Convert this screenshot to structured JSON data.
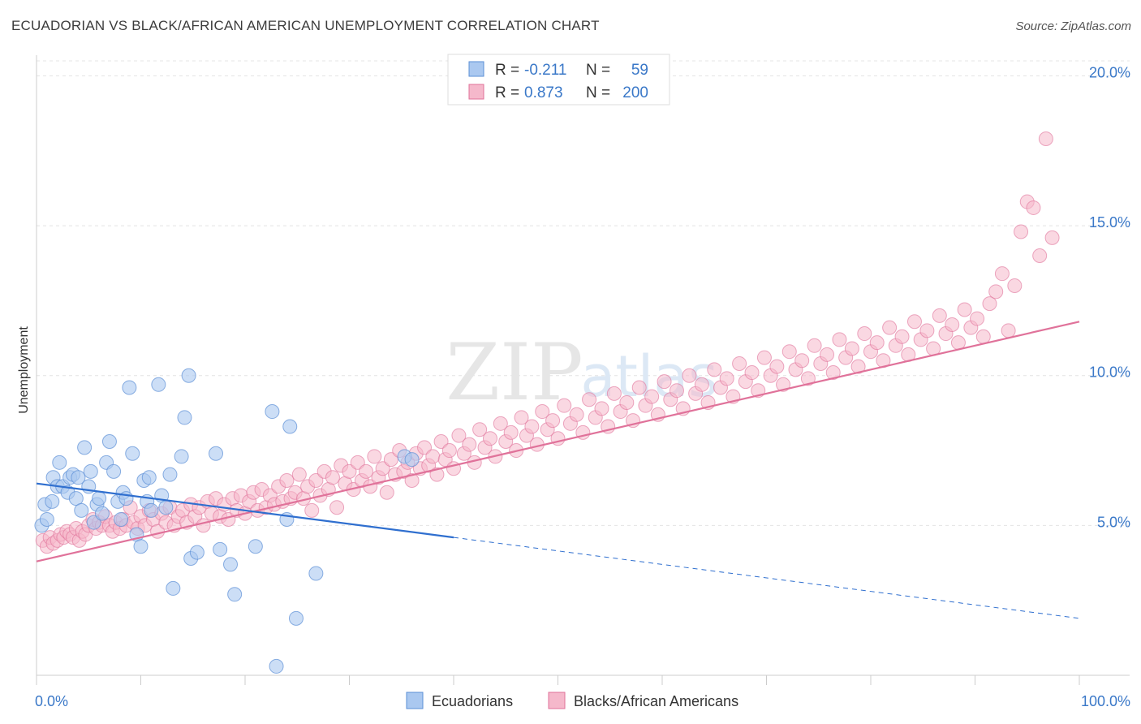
{
  "title": "ECUADORIAN VS BLACK/AFRICAN AMERICAN UNEMPLOYMENT CORRELATION CHART",
  "source": "Source: ZipAtlas.com",
  "watermark": {
    "zip": "ZIP",
    "atlas": "atlas"
  },
  "colors": {
    "blue": "#5b8fd6",
    "blue_fill": "#aac8f0",
    "pink": "#e0729a",
    "pink_fill": "#f5b8cb",
    "axis_text": "#3a78c8"
  },
  "legend": {
    "rows": [
      {
        "r_label": "R =",
        "r_value": "-0.211",
        "n_label": "N =",
        "n_value": "59"
      },
      {
        "r_label": "R =",
        "r_value": "0.873",
        "n_label": "N =",
        "n_value": "200"
      }
    ]
  },
  "chart_data": {
    "type": "scatter",
    "title": "ECUADORIAN VS BLACK/AFRICAN AMERICAN UNEMPLOYMENT CORRELATION CHART",
    "xlabel": "",
    "ylabel": "Unemployment",
    "xlim": [
      0,
      100
    ],
    "ylim": [
      0,
      20.5
    ],
    "x_tick_labels": [
      "0.0%",
      "100.0%"
    ],
    "y_ticks": [
      5,
      10,
      15,
      20
    ],
    "y_tick_labels": [
      "5.0%",
      "10.0%",
      "15.0%",
      "20.0%"
    ],
    "grid": true,
    "legend_position": "bottom-center",
    "series": [
      {
        "name": "Ecuadorians",
        "r": -0.211,
        "n": 59,
        "trend": {
          "x0": 0,
          "y0": 6.4,
          "x1": 40,
          "y1": 4.6,
          "dash_to_x": 100,
          "dash_to_y": 1.9
        },
        "points": [
          [
            0.5,
            5.0
          ],
          [
            0.8,
            5.7
          ],
          [
            1.0,
            5.2
          ],
          [
            1.5,
            5.8
          ],
          [
            1.6,
            6.6
          ],
          [
            2.0,
            6.3
          ],
          [
            2.2,
            7.1
          ],
          [
            2.5,
            6.3
          ],
          [
            3.0,
            6.1
          ],
          [
            3.2,
            6.6
          ],
          [
            3.5,
            6.7
          ],
          [
            3.8,
            5.9
          ],
          [
            4.0,
            6.6
          ],
          [
            4.3,
            5.5
          ],
          [
            4.6,
            7.6
          ],
          [
            5.0,
            6.3
          ],
          [
            5.2,
            6.8
          ],
          [
            5.5,
            5.1
          ],
          [
            5.8,
            5.7
          ],
          [
            6.0,
            5.9
          ],
          [
            6.3,
            5.4
          ],
          [
            6.7,
            7.1
          ],
          [
            7.0,
            7.8
          ],
          [
            7.4,
            6.8
          ],
          [
            7.8,
            5.8
          ],
          [
            8.1,
            5.2
          ],
          [
            8.3,
            6.1
          ],
          [
            8.6,
            5.9
          ],
          [
            8.9,
            9.6
          ],
          [
            9.2,
            7.4
          ],
          [
            9.6,
            4.7
          ],
          [
            10.0,
            4.3
          ],
          [
            10.3,
            6.5
          ],
          [
            10.6,
            5.8
          ],
          [
            10.8,
            6.6
          ],
          [
            11.0,
            5.5
          ],
          [
            11.7,
            9.7
          ],
          [
            12.0,
            6.0
          ],
          [
            12.4,
            5.6
          ],
          [
            12.8,
            6.7
          ],
          [
            13.1,
            2.9
          ],
          [
            13.9,
            7.3
          ],
          [
            14.2,
            8.6
          ],
          [
            14.6,
            10.0
          ],
          [
            14.8,
            3.9
          ],
          [
            15.4,
            4.1
          ],
          [
            17.2,
            7.4
          ],
          [
            17.6,
            4.2
          ],
          [
            18.6,
            3.7
          ],
          [
            19.0,
            2.7
          ],
          [
            21.0,
            4.3
          ],
          [
            22.6,
            8.8
          ],
          [
            23.0,
            0.3
          ],
          [
            24.0,
            5.2
          ],
          [
            24.3,
            8.3
          ],
          [
            24.9,
            1.9
          ],
          [
            26.8,
            3.4
          ],
          [
            35.3,
            7.3
          ],
          [
            36.0,
            7.2
          ]
        ]
      },
      {
        "name": "Blacks/African Americans",
        "r": 0.873,
        "n": 200,
        "trend": {
          "x0": 0,
          "y0": 3.8,
          "x1": 100,
          "y1": 11.8
        },
        "points": [
          [
            0.6,
            4.5
          ],
          [
            1.0,
            4.3
          ],
          [
            1.3,
            4.6
          ],
          [
            1.6,
            4.4
          ],
          [
            2.0,
            4.5
          ],
          [
            2.3,
            4.7
          ],
          [
            2.6,
            4.6
          ],
          [
            2.9,
            4.8
          ],
          [
            3.2,
            4.7
          ],
          [
            3.5,
            4.6
          ],
          [
            3.8,
            4.9
          ],
          [
            4.1,
            4.5
          ],
          [
            4.4,
            4.8
          ],
          [
            4.7,
            4.7
          ],
          [
            5.0,
            5.0
          ],
          [
            5.4,
            5.2
          ],
          [
            5.7,
            4.9
          ],
          [
            6.0,
            5.1
          ],
          [
            6.3,
            5.0
          ],
          [
            6.6,
            5.3
          ],
          [
            7.0,
            5.0
          ],
          [
            7.3,
            4.8
          ],
          [
            7.6,
            5.1
          ],
          [
            8.0,
            4.9
          ],
          [
            8.3,
            5.2
          ],
          [
            8.6,
            5.0
          ],
          [
            9.0,
            5.6
          ],
          [
            9.3,
            5.1
          ],
          [
            9.7,
            4.9
          ],
          [
            10.0,
            5.3
          ],
          [
            10.4,
            5.0
          ],
          [
            10.8,
            5.5
          ],
          [
            11.2,
            5.2
          ],
          [
            11.6,
            4.8
          ],
          [
            12.0,
            5.4
          ],
          [
            12.4,
            5.1
          ],
          [
            12.8,
            5.6
          ],
          [
            13.2,
            5.0
          ],
          [
            13.6,
            5.3
          ],
          [
            14.0,
            5.5
          ],
          [
            14.4,
            5.1
          ],
          [
            14.8,
            5.7
          ],
          [
            15.2,
            5.3
          ],
          [
            15.6,
            5.6
          ],
          [
            16.0,
            5.0
          ],
          [
            16.4,
            5.8
          ],
          [
            16.8,
            5.4
          ],
          [
            17.2,
            5.9
          ],
          [
            17.6,
            5.3
          ],
          [
            18.0,
            5.7
          ],
          [
            18.4,
            5.2
          ],
          [
            18.8,
            5.9
          ],
          [
            19.2,
            5.5
          ],
          [
            19.6,
            6.0
          ],
          [
            20.0,
            5.4
          ],
          [
            20.4,
            5.8
          ],
          [
            20.8,
            6.1
          ],
          [
            21.2,
            5.5
          ],
          [
            21.6,
            6.2
          ],
          [
            22.0,
            5.6
          ],
          [
            22.4,
            6.0
          ],
          [
            22.8,
            5.7
          ],
          [
            23.2,
            6.3
          ],
          [
            23.6,
            5.8
          ],
          [
            24.0,
            6.5
          ],
          [
            24.4,
            5.9
          ],
          [
            24.8,
            6.1
          ],
          [
            25.2,
            6.7
          ],
          [
            25.6,
            5.9
          ],
          [
            26.0,
            6.3
          ],
          [
            26.4,
            5.5
          ],
          [
            26.8,
            6.5
          ],
          [
            27.2,
            6.0
          ],
          [
            27.6,
            6.8
          ],
          [
            28.0,
            6.2
          ],
          [
            28.4,
            6.6
          ],
          [
            28.8,
            5.6
          ],
          [
            29.2,
            7.0
          ],
          [
            29.6,
            6.4
          ],
          [
            30.0,
            6.8
          ],
          [
            30.4,
            6.2
          ],
          [
            30.8,
            7.1
          ],
          [
            31.2,
            6.5
          ],
          [
            31.6,
            6.8
          ],
          [
            32.0,
            6.3
          ],
          [
            32.4,
            7.3
          ],
          [
            32.8,
            6.6
          ],
          [
            33.2,
            6.9
          ],
          [
            33.6,
            6.1
          ],
          [
            34.0,
            7.2
          ],
          [
            34.4,
            6.7
          ],
          [
            34.8,
            7.5
          ],
          [
            35.2,
            6.8
          ],
          [
            35.6,
            7.1
          ],
          [
            36.0,
            6.5
          ],
          [
            36.4,
            7.4
          ],
          [
            36.8,
            6.9
          ],
          [
            37.2,
            7.6
          ],
          [
            37.6,
            7.0
          ],
          [
            38.0,
            7.3
          ],
          [
            38.4,
            6.7
          ],
          [
            38.8,
            7.8
          ],
          [
            39.2,
            7.2
          ],
          [
            39.6,
            7.5
          ],
          [
            40.0,
            6.9
          ],
          [
            40.5,
            8.0
          ],
          [
            41.0,
            7.4
          ],
          [
            41.5,
            7.7
          ],
          [
            42.0,
            7.1
          ],
          [
            42.5,
            8.2
          ],
          [
            43.0,
            7.6
          ],
          [
            43.5,
            7.9
          ],
          [
            44.0,
            7.3
          ],
          [
            44.5,
            8.4
          ],
          [
            45.0,
            7.8
          ],
          [
            45.5,
            8.1
          ],
          [
            46.0,
            7.5
          ],
          [
            46.5,
            8.6
          ],
          [
            47.0,
            8.0
          ],
          [
            47.5,
            8.3
          ],
          [
            48.0,
            7.7
          ],
          [
            48.5,
            8.8
          ],
          [
            49.0,
            8.2
          ],
          [
            49.5,
            8.5
          ],
          [
            50.0,
            7.9
          ],
          [
            50.6,
            9.0
          ],
          [
            51.2,
            8.4
          ],
          [
            51.8,
            8.7
          ],
          [
            52.4,
            8.1
          ],
          [
            53.0,
            9.2
          ],
          [
            53.6,
            8.6
          ],
          [
            54.2,
            8.9
          ],
          [
            54.8,
            8.3
          ],
          [
            55.4,
            9.4
          ],
          [
            56.0,
            8.8
          ],
          [
            56.6,
            9.1
          ],
          [
            57.2,
            8.5
          ],
          [
            57.8,
            9.6
          ],
          [
            58.4,
            9.0
          ],
          [
            59.0,
            9.3
          ],
          [
            59.6,
            8.7
          ],
          [
            60.2,
            9.8
          ],
          [
            60.8,
            9.2
          ],
          [
            61.4,
            9.5
          ],
          [
            62.0,
            8.9
          ],
          [
            62.6,
            10.0
          ],
          [
            63.2,
            9.4
          ],
          [
            63.8,
            9.7
          ],
          [
            64.4,
            9.1
          ],
          [
            65.0,
            10.2
          ],
          [
            65.6,
            9.6
          ],
          [
            66.2,
            9.9
          ],
          [
            66.8,
            9.3
          ],
          [
            67.4,
            10.4
          ],
          [
            68.0,
            9.8
          ],
          [
            68.6,
            10.1
          ],
          [
            69.2,
            9.5
          ],
          [
            69.8,
            10.6
          ],
          [
            70.4,
            10.0
          ],
          [
            71.0,
            10.3
          ],
          [
            71.6,
            9.7
          ],
          [
            72.2,
            10.8
          ],
          [
            72.8,
            10.2
          ],
          [
            73.4,
            10.5
          ],
          [
            74.0,
            9.9
          ],
          [
            74.6,
            11.0
          ],
          [
            75.2,
            10.4
          ],
          [
            75.8,
            10.7
          ],
          [
            76.4,
            10.1
          ],
          [
            77.0,
            11.2
          ],
          [
            77.6,
            10.6
          ],
          [
            78.2,
            10.9
          ],
          [
            78.8,
            10.3
          ],
          [
            79.4,
            11.4
          ],
          [
            80.0,
            10.8
          ],
          [
            80.6,
            11.1
          ],
          [
            81.2,
            10.5
          ],
          [
            81.8,
            11.6
          ],
          [
            82.4,
            11.0
          ],
          [
            83.0,
            11.3
          ],
          [
            83.6,
            10.7
          ],
          [
            84.2,
            11.8
          ],
          [
            84.8,
            11.2
          ],
          [
            85.4,
            11.5
          ],
          [
            86.0,
            10.9
          ],
          [
            86.6,
            12.0
          ],
          [
            87.2,
            11.4
          ],
          [
            87.8,
            11.7
          ],
          [
            88.4,
            11.1
          ],
          [
            89.0,
            12.2
          ],
          [
            89.6,
            11.6
          ],
          [
            90.2,
            11.9
          ],
          [
            90.8,
            11.3
          ],
          [
            91.4,
            12.4
          ],
          [
            92.0,
            12.8
          ],
          [
            92.6,
            13.4
          ],
          [
            93.2,
            11.5
          ],
          [
            93.8,
            13.0
          ],
          [
            94.4,
            14.8
          ],
          [
            95.0,
            15.8
          ],
          [
            95.6,
            15.6
          ],
          [
            96.2,
            14.0
          ],
          [
            96.8,
            17.9
          ],
          [
            97.4,
            14.6
          ]
        ]
      }
    ]
  }
}
